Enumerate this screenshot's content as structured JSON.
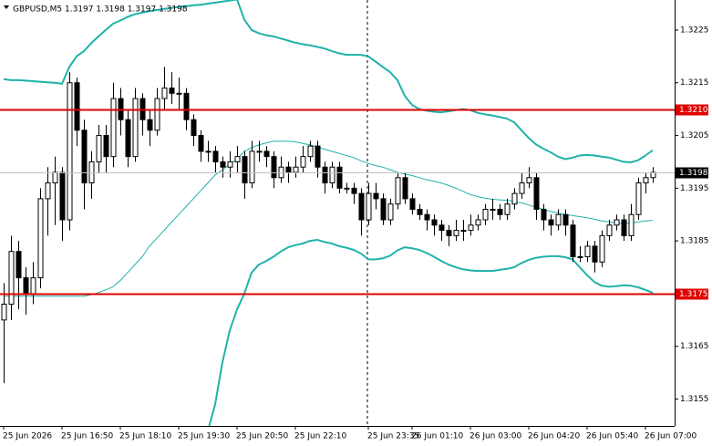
{
  "chart_data": {
    "type": "candlestick",
    "title": "GBPUSD,M5  1.3197 1.3198 1.3197 1.3198",
    "candles": [
      [
        1.317,
        1.3177,
        1.3158,
        1.3173
      ],
      [
        1.3173,
        1.3186,
        1.317,
        1.3183
      ],
      [
        1.3183,
        1.3185,
        1.3172,
        1.3178
      ],
      [
        1.3178,
        1.318,
        1.3171,
        1.3175
      ],
      [
        1.3175,
        1.3181,
        1.3173,
        1.3178
      ],
      [
        1.3178,
        1.3195,
        1.3176,
        1.3193
      ],
      [
        1.3193,
        1.3199,
        1.3186,
        1.3196
      ],
      [
        1.3196,
        1.3201,
        1.3188,
        1.3198
      ],
      [
        1.3198,
        1.3199,
        1.3185,
        1.3189
      ],
      [
        1.3189,
        1.3217,
        1.3187,
        1.3215
      ],
      [
        1.3215,
        1.3216,
        1.3203,
        1.3206
      ],
      [
        1.3206,
        1.3208,
        1.3191,
        1.3196
      ],
      [
        1.3196,
        1.3202,
        1.3193,
        1.32
      ],
      [
        1.32,
        1.3207,
        1.3198,
        1.3205
      ],
      [
        1.3205,
        1.3207,
        1.3198,
        1.3201
      ],
      [
        1.3201,
        1.3215,
        1.3199,
        1.3212
      ],
      [
        1.3212,
        1.3214,
        1.3205,
        1.3208
      ],
      [
        1.3208,
        1.321,
        1.3199,
        1.3201
      ],
      [
        1.3201,
        1.3214,
        1.32,
        1.3212
      ],
      [
        1.3212,
        1.3213,
        1.3205,
        1.3208
      ],
      [
        1.3208,
        1.321,
        1.3203,
        1.3206
      ],
      [
        1.3206,
        1.3214,
        1.3205,
        1.3212
      ],
      [
        1.3212,
        1.3218,
        1.321,
        1.3214
      ],
      [
        1.3214,
        1.3217,
        1.3211,
        1.3213
      ],
      [
        1.3213,
        1.3216,
        1.321,
        1.3213
      ],
      [
        1.3213,
        1.3214,
        1.3206,
        1.3208
      ],
      [
        1.3208,
        1.3209,
        1.3203,
        1.3205
      ],
      [
        1.3205,
        1.3206,
        1.32,
        1.3202
      ],
      [
        1.3202,
        1.3204,
        1.32,
        1.3202
      ],
      [
        1.3202,
        1.3203,
        1.3198,
        1.32
      ],
      [
        1.32,
        1.3201,
        1.3197,
        1.3199
      ],
      [
        1.3199,
        1.3202,
        1.3197,
        1.32
      ],
      [
        1.32,
        1.3203,
        1.3198,
        1.3201
      ],
      [
        1.3201,
        1.3202,
        1.3193,
        1.3196
      ],
      [
        1.3196,
        1.3204,
        1.3195,
        1.3202
      ],
      [
        1.3202,
        1.3204,
        1.32,
        1.3202
      ],
      [
        1.3202,
        1.3203,
        1.3199,
        1.3201
      ],
      [
        1.3201,
        1.3202,
        1.3195,
        1.3197
      ],
      [
        1.3197,
        1.3201,
        1.3196,
        1.3199
      ],
      [
        1.3199,
        1.32,
        1.3196,
        1.3198
      ],
      [
        1.3198,
        1.3201,
        1.3197,
        1.3199
      ],
      [
        1.3199,
        1.3203,
        1.3198,
        1.3201
      ],
      [
        1.3201,
        1.3204,
        1.32,
        1.3203
      ],
      [
        1.3203,
        1.3204,
        1.3197,
        1.3199
      ],
      [
        1.3199,
        1.32,
        1.3194,
        1.3196
      ],
      [
        1.3196,
        1.32,
        1.3195,
        1.3199
      ],
      [
        1.3199,
        1.32,
        1.3194,
        1.3195
      ],
      [
        1.3195,
        1.3196,
        1.3194,
        1.3195
      ],
      [
        1.3195,
        1.3196,
        1.3192,
        1.3194
      ],
      [
        1.3194,
        1.3195,
        1.3186,
        1.3189
      ],
      [
        1.3189,
        1.3196,
        1.3188,
        1.3194
      ],
      [
        1.3194,
        1.3196,
        1.3191,
        1.3193
      ],
      [
        1.3193,
        1.3194,
        1.3188,
        1.3189
      ],
      [
        1.3189,
        1.3193,
        1.3188,
        1.3192
      ],
      [
        1.3192,
        1.3198,
        1.3191,
        1.3197
      ],
      [
        1.3197,
        1.3198,
        1.3192,
        1.3193
      ],
      [
        1.3193,
        1.3194,
        1.319,
        1.3191
      ],
      [
        1.3191,
        1.3192,
        1.3189,
        1.319
      ],
      [
        1.319,
        1.3191,
        1.3187,
        1.3189
      ],
      [
        1.3189,
        1.319,
        1.3186,
        1.3188
      ],
      [
        1.3188,
        1.3189,
        1.3185,
        1.3187
      ],
      [
        1.3187,
        1.3188,
        1.3184,
        1.3186
      ],
      [
        1.3186,
        1.3189,
        1.3185,
        1.3187
      ],
      [
        1.3187,
        1.3189,
        1.3185,
        1.3187
      ],
      [
        1.3187,
        1.319,
        1.3186,
        1.3188
      ],
      [
        1.3188,
        1.319,
        1.3187,
        1.3189
      ],
      [
        1.3189,
        1.3192,
        1.3188,
        1.3191
      ],
      [
        1.3191,
        1.3193,
        1.3189,
        1.3191
      ],
      [
        1.3191,
        1.3192,
        1.3189,
        1.319
      ],
      [
        1.319,
        1.3193,
        1.3189,
        1.3192
      ],
      [
        1.3192,
        1.3195,
        1.3191,
        1.3194
      ],
      [
        1.3194,
        1.3198,
        1.3193,
        1.3196
      ],
      [
        1.3196,
        1.3199,
        1.3195,
        1.3197
      ],
      [
        1.3197,
        1.3198,
        1.3189,
        1.3191
      ],
      [
        1.3191,
        1.3192,
        1.3187,
        1.3189
      ],
      [
        1.3189,
        1.319,
        1.3186,
        1.3188
      ],
      [
        1.3188,
        1.3191,
        1.3187,
        1.319
      ],
      [
        1.319,
        1.3191,
        1.3186,
        1.3188
      ],
      [
        1.3188,
        1.3189,
        1.3181,
        1.3182
      ],
      [
        1.3182,
        1.3184,
        1.3181,
        1.3182
      ],
      [
        1.3182,
        1.3185,
        1.3181,
        1.3184
      ],
      [
        1.3184,
        1.3185,
        1.3179,
        1.3181
      ],
      [
        1.3181,
        1.3187,
        1.318,
        1.3186
      ],
      [
        1.3186,
        1.3189,
        1.3185,
        1.3188
      ],
      [
        1.3188,
        1.319,
        1.3187,
        1.3189
      ],
      [
        1.3189,
        1.319,
        1.3185,
        1.3186
      ],
      [
        1.3186,
        1.3192,
        1.3185,
        1.319
      ],
      [
        1.319,
        1.3197,
        1.3189,
        1.3196
      ],
      [
        1.3196,
        1.3198,
        1.3194,
        1.3197
      ],
      [
        1.3197,
        1.3199,
        1.3196,
        1.3198
      ]
    ],
    "series": [
      {
        "color": "#20b2aa",
        "line_width": 2,
        "values": [
          1.32157,
          1.32155,
          1.32155,
          1.32154,
          1.32153,
          1.32152,
          1.32151,
          1.3215,
          1.32148,
          1.3218,
          1.322,
          1.3221,
          1.32225,
          1.32238,
          1.3225,
          1.32262,
          1.32268,
          1.32275,
          1.3228,
          1.32283,
          1.32286,
          1.32288,
          1.3229,
          1.32292,
          1.32294,
          1.32295,
          1.32297,
          1.32298,
          1.323,
          1.32302,
          1.32304,
          1.32306,
          1.32308,
          1.3227,
          1.3225,
          1.32244,
          1.3224,
          1.32238,
          1.32234,
          1.3223,
          1.32226,
          1.32223,
          1.32221,
          1.32218,
          1.32215,
          1.3221,
          1.32206,
          1.32203,
          1.32203,
          1.32203,
          1.322,
          1.3219,
          1.3218,
          1.3217,
          1.32155,
          1.32125,
          1.32108,
          1.321,
          1.32097,
          1.32095,
          1.32094,
          1.32096,
          1.32098,
          1.321,
          1.32098,
          1.32093,
          1.3209,
          1.32088,
          1.32085,
          1.32082,
          1.32075,
          1.3206,
          1.32045,
          1.32033,
          1.32025,
          1.32018,
          1.3201,
          1.32005,
          1.32008,
          1.32012,
          1.32013,
          1.32012,
          1.3201,
          1.32008,
          1.32004,
          1.32,
          1.31999,
          1.32003,
          1.32012,
          1.32022
        ]
      },
      {
        "color": "#20b2aa",
        "line_width": 1,
        "values": [
          1.31745,
          1.31745,
          1.31745,
          1.31745,
          1.31745,
          1.31745,
          1.31745,
          1.31745,
          1.31745,
          1.31745,
          1.31745,
          1.31745,
          1.31748,
          1.31752,
          1.31757,
          1.31763,
          1.31775,
          1.3179,
          1.31805,
          1.3182,
          1.3184,
          1.31855,
          1.3187,
          1.31885,
          1.319,
          1.31915,
          1.3193,
          1.31945,
          1.3196,
          1.31975,
          1.31985,
          1.31995,
          1.32005,
          1.3202,
          1.32027,
          1.32032,
          1.32036,
          1.32039,
          1.32039,
          1.32039,
          1.32038,
          1.32035,
          1.32032,
          1.32028,
          1.32024,
          1.3202,
          1.32016,
          1.32012,
          1.32008,
          1.32002,
          1.31997,
          1.31993,
          1.3199,
          1.31985,
          1.3198,
          1.31977,
          1.31974,
          1.3197,
          1.31966,
          1.31963,
          1.3196,
          1.31955,
          1.3195,
          1.31944,
          1.31938,
          1.31934,
          1.31931,
          1.31929,
          1.31928,
          1.31927,
          1.31925,
          1.31922,
          1.31918,
          1.31914,
          1.3191,
          1.31906,
          1.31903,
          1.319,
          1.31898,
          1.31896,
          1.31894,
          1.31891,
          1.31888,
          1.31886,
          1.31884,
          1.31883,
          1.31884,
          1.31886,
          1.31888,
          1.31889
        ]
      },
      {
        "color": "#20b2aa",
        "line_width": 2,
        "values": [
          null,
          null,
          null,
          null,
          null,
          null,
          null,
          null,
          null,
          null,
          null,
          null,
          null,
          null,
          null,
          null,
          null,
          null,
          null,
          null,
          null,
          null,
          null,
          null,
          null,
          null,
          null,
          null,
          1.3149,
          1.3154,
          1.3162,
          1.3168,
          1.3172,
          1.3175,
          1.3179,
          1.31805,
          1.31812,
          1.3182,
          1.3183,
          1.31838,
          1.31842,
          1.31845,
          1.3185,
          1.31852,
          1.31848,
          1.31845,
          1.3184,
          1.31837,
          1.31833,
          1.31826,
          1.31815,
          1.31815,
          1.31817,
          1.31822,
          1.31832,
          1.31838,
          1.31836,
          1.31833,
          1.31827,
          1.3182,
          1.31812,
          1.31805,
          1.318,
          1.31796,
          1.31794,
          1.31793,
          1.31793,
          1.31793,
          1.31795,
          1.31797,
          1.318,
          1.31808,
          1.31814,
          1.31818,
          1.3182,
          1.31821,
          1.31821,
          1.31819,
          1.31815,
          1.318,
          1.31785,
          1.31772,
          1.31765,
          1.31763,
          1.31764,
          1.31766,
          1.31765,
          1.31762,
          1.31757,
          1.31752
        ]
      }
    ],
    "levels": [
      {
        "value": 1.321,
        "label": "1.3210",
        "color": "#e00000"
      },
      {
        "value": 1.3175,
        "label": "1.3175",
        "color": "#e00000"
      }
    ],
    "last_price": 1.3198,
    "xlim": [
      -0.5,
      92
    ],
    "xticks": [
      {
        "value": 0,
        "label": "25 Jun 2026"
      },
      {
        "value": 8,
        "label": "25 Jun 16:50"
      },
      {
        "value": 16,
        "label": "25 Jun 18:10"
      },
      {
        "value": 24,
        "label": "25 Jun 19:30"
      },
      {
        "value": 32,
        "label": "25 Jun 20:50"
      },
      {
        "value": 40,
        "label": "25 Jun 22:10"
      },
      {
        "value": 50,
        "label": "25 Jun 23:35"
      },
      {
        "value": 56,
        "label": "26 Jun 01:10"
      },
      {
        "value": 64,
        "label": "26 Jun 03:00"
      },
      {
        "value": 72,
        "label": "26 Jun 04:20"
      },
      {
        "value": 80,
        "label": "26 Jun 05:40"
      },
      {
        "value": 88,
        "label": "26 Jun 07:00"
      }
    ],
    "ylim": [
      1.31499,
      1.32307
    ],
    "yticks": [
      1.3225,
      1.3215,
      1.3205,
      1.3195,
      1.3185,
      1.3165,
      1.3155
    ],
    "grid": false
  }
}
